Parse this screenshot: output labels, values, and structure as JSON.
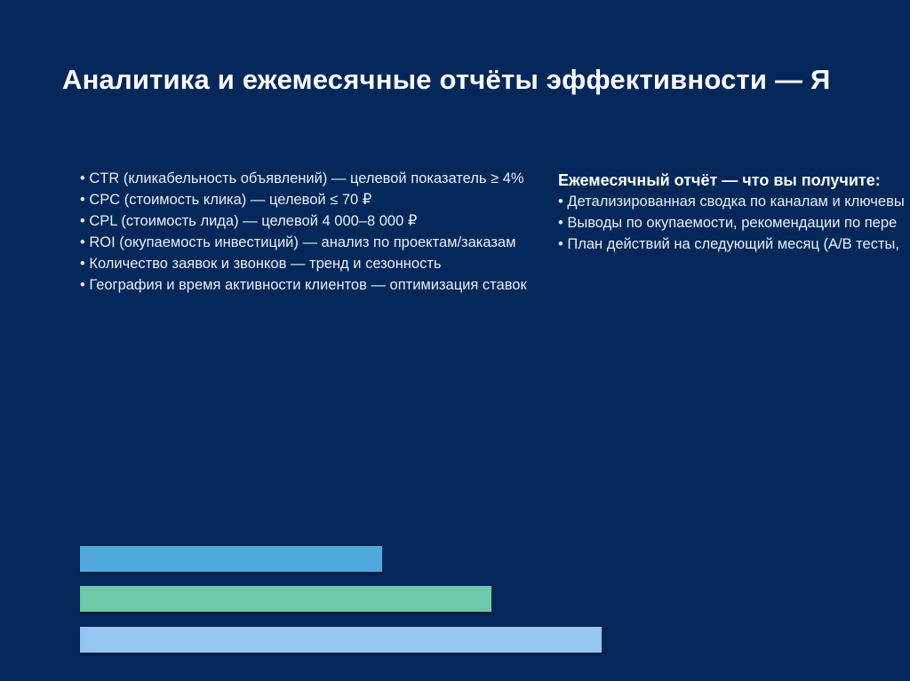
{
  "slide": {
    "title": "Аналитика и ежемесячные отчёты эффективности — Я",
    "metrics": [
      "• CTR (кликабельность объявлений) — целевой показатель ≥ 4%",
      "• CPC (стоимость клика) — целевой ≤ 70 ₽",
      "• CPL (стоимость лида) — целевой 4 000–8 000 ₽",
      "• ROI (окупаемость инвестиций) — анализ по проектам/заказам",
      "• Количество заявок и звонков — тренд и сезонность",
      "• География и время активности клиентов — оптимизация ставок"
    ],
    "report": {
      "heading": "Ежемесячный отчёт — что вы получите:",
      "items": [
        "• Детализированная сводка по каналам и ключевы",
        "• Выводы по окупаемости, рекомендации по пере",
        "• План действий на следующий месяц (A/B тесты,"
      ]
    },
    "decor_bars": [
      {
        "color": "#4fa9dc"
      },
      {
        "color": "#6ccaa6"
      },
      {
        "color": "#94c6ef"
      }
    ],
    "colors": {
      "background": "#02285a",
      "text": "#ffffff"
    }
  }
}
